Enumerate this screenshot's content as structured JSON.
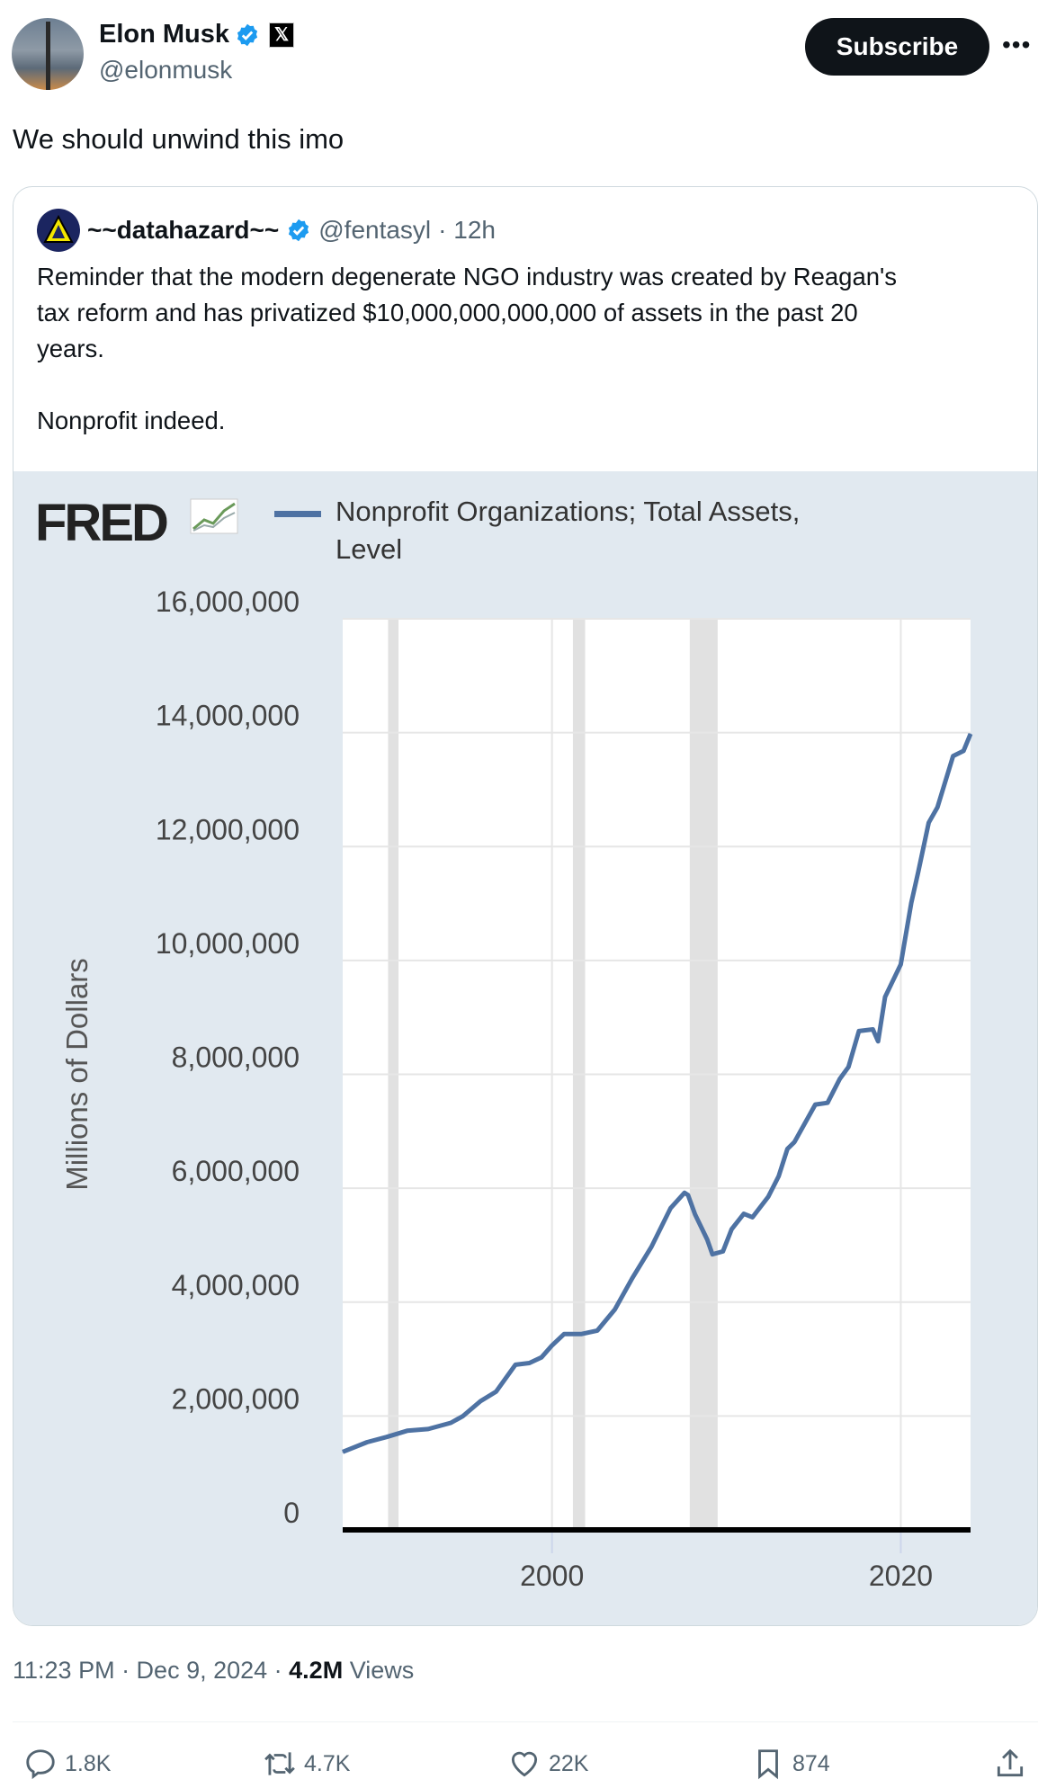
{
  "author": {
    "name": "Elon Musk",
    "handle": "@elonmusk",
    "subscribe_label": "Subscribe",
    "more_label": "•••",
    "x_badge": "𝕏"
  },
  "tweet_text": "We should unwind this imo",
  "quote": {
    "name": "~~datahazard~~",
    "handle": "@fentasyl",
    "time": "· 12h",
    "text_lines": [
      "Reminder that the modern degenerate NGO industry was created by Reagan's",
      "tax reform and has privatized $10,000,000,000,000 of assets in the past 20",
      "years."
    ],
    "text_tail": "Nonprofit indeed."
  },
  "chart_data": {
    "type": "line",
    "logo": "FRED",
    "title": "Nonprofit Organizations; Total Assets, Level",
    "legend": [
      "Nonprofit Organizations; Total Assets,",
      "Level"
    ],
    "ylabel": "Millions of Dollars",
    "xlabel": "",
    "ylim": [
      0,
      16000000
    ],
    "xlim": [
      1988,
      2024
    ],
    "yticks": [
      0,
      2000000,
      4000000,
      6000000,
      8000000,
      10000000,
      12000000,
      14000000,
      16000000
    ],
    "ytick_labels": [
      "0",
      "2,000,000",
      "4,000,000",
      "6,000,000",
      "8,000,000",
      "10,000,000",
      "12,000,000",
      "14,000,000",
      "16,000,000"
    ],
    "xticks": [
      2000,
      2020
    ],
    "xtick_labels": [
      "2000",
      "2020"
    ],
    "recessions": [
      [
        1990.6,
        1991.2
      ],
      [
        2001.2,
        2001.9
      ],
      [
        2007.9,
        2009.5
      ]
    ],
    "line_color": "#4e72a3",
    "series": [
      {
        "name": "Nonprofit Organizations; Total Assets, Level",
        "x": [
          1988.0,
          1989.4,
          1990.5,
          1991.7,
          1992.9,
          1994.2,
          1994.9,
          1995.9,
          1996.8,
          1997.9,
          1998.7,
          1999.4,
          2000.0,
          2000.7,
          2001.7,
          2002.6,
          2003.6,
          2004.6,
          2005.7,
          2006.8,
          2007.6,
          2007.8,
          2008.2,
          2008.9,
          2009.2,
          2009.8,
          2010.3,
          2011.0,
          2011.5,
          2012.4,
          2013.0,
          2013.5,
          2013.9,
          2015.1,
          2015.8,
          2016.5,
          2017.0,
          2017.6,
          2018.4,
          2018.7,
          2019.1,
          2020.0,
          2020.6,
          2021.0,
          2021.6,
          2022.1,
          2023.0,
          2023.6,
          2024.0
        ],
        "y": [
          1370000,
          1540000,
          1630000,
          1740000,
          1770000,
          1880000,
          2000000,
          2260000,
          2430000,
          2900000,
          2930000,
          3030000,
          3240000,
          3440000,
          3440000,
          3500000,
          3870000,
          4420000,
          4970000,
          5650000,
          5920000,
          5880000,
          5540000,
          5100000,
          4840000,
          4890000,
          5280000,
          5550000,
          5490000,
          5850000,
          6210000,
          6690000,
          6810000,
          7470000,
          7500000,
          7920000,
          8130000,
          8760000,
          8790000,
          8580000,
          9360000,
          9930000,
          11010000,
          11550000,
          12420000,
          12690000,
          13590000,
          13680000,
          13980000
        ]
      }
    ]
  },
  "footer": {
    "time": "11:23 PM · Dec 9, 2024 · ",
    "views_count": "4.2M",
    "views_label": " Views"
  },
  "actions": {
    "replies": "1.8K",
    "reposts": "4.7K",
    "likes": "22K",
    "bookmarks": "874"
  }
}
